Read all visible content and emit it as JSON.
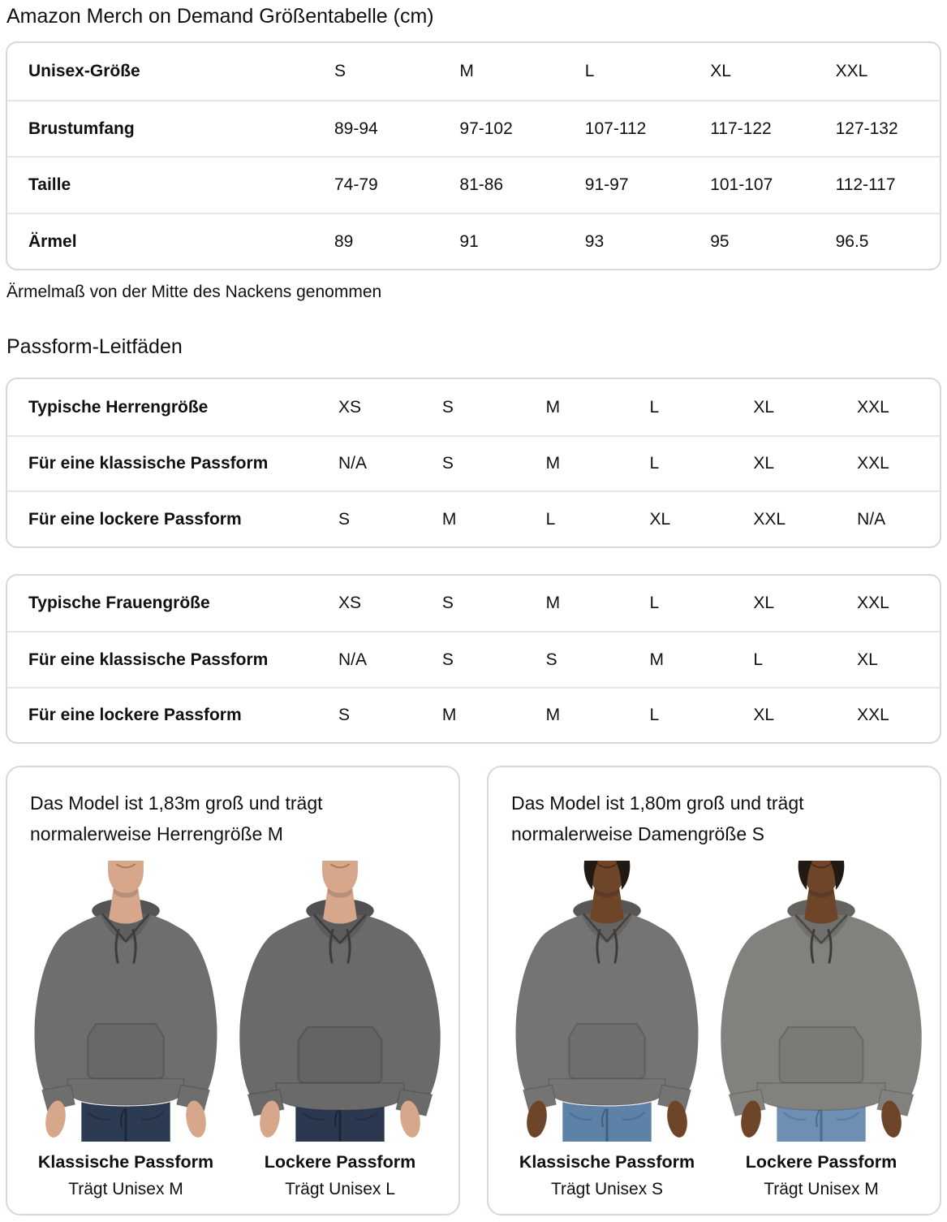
{
  "page": {
    "title": "Amazon Merch on Demand Größentabelle (cm)",
    "sleeve_note": "Ärmelmaß von der Mitte des Nackens genommen",
    "fit_guides_heading": "Passform-Leitfäden"
  },
  "size_table": {
    "rows": [
      {
        "label": "Unisex-Größe",
        "values": [
          "S",
          "M",
          "L",
          "XL",
          "XXL"
        ]
      },
      {
        "label": "Brustumfang",
        "values": [
          "89-94",
          "97-102",
          "107-112",
          "117-122",
          "127-132"
        ]
      },
      {
        "label": "Taille",
        "values": [
          "74-79",
          "81-86",
          "91-97",
          "101-107",
          "112-117"
        ]
      },
      {
        "label": "Ärmel",
        "values": [
          "89",
          "91",
          "93",
          "95",
          "96.5"
        ]
      }
    ]
  },
  "fit_tables": [
    {
      "name": "men",
      "rows": [
        {
          "label": "Typische Herrengröße",
          "values": [
            "XS",
            "S",
            "M",
            "L",
            "XL",
            "XXL"
          ]
        },
        {
          "label": "Für eine klassische Passform",
          "values": [
            "N/A",
            "S",
            "M",
            "L",
            "XL",
            "XXL"
          ]
        },
        {
          "label": "Für eine lockere Passform",
          "values": [
            "S",
            "M",
            "L",
            "XL",
            "XXL",
            "N/A"
          ]
        }
      ]
    },
    {
      "name": "women",
      "rows": [
        {
          "label": "Typische Frauengröße",
          "values": [
            "XS",
            "S",
            "M",
            "L",
            "XL",
            "XXL"
          ]
        },
        {
          "label": "Für eine klassische Passform",
          "values": [
            "N/A",
            "S",
            "S",
            "M",
            "L",
            "XL"
          ]
        },
        {
          "label": "Für eine lockere Passform",
          "values": [
            "S",
            "M",
            "M",
            "L",
            "XL",
            "XXL"
          ]
        }
      ]
    }
  ],
  "model_cards": [
    {
      "description": "Das Model ist 1,83m groß und trägt normalerweise Herrengröße M",
      "figures": [
        {
          "fit_label": "Klassische Passform",
          "size_label": "Trägt Unisex M",
          "photo": {
            "model": "male",
            "fit": "classic",
            "hoodie": "#6E6E6E",
            "hoodie_shadow": "#545454",
            "skin": "#D7A78C",
            "skin_shadow": "#B07B60",
            "jeans": "#2C3A52",
            "jeans_shadow": "#1B2736"
          }
        },
        {
          "fit_label": "Lockere Passform",
          "size_label": "Trägt Unisex L",
          "photo": {
            "model": "male",
            "fit": "loose",
            "hoodie": "#6A6A6A",
            "hoodie_shadow": "#505050",
            "skin": "#D7A78C",
            "skin_shadow": "#B07B60",
            "jeans": "#2B3850",
            "jeans_shadow": "#1A2634"
          }
        }
      ]
    },
    {
      "description": "Das Model ist 1,80m groß und trägt normalerweise Damengröße S",
      "figures": [
        {
          "fit_label": "Klassische Passform",
          "size_label": "Trägt Unisex S",
          "photo": {
            "model": "female",
            "fit": "classic",
            "hoodie": "#767472",
            "hoodie_shadow": "#595755",
            "skin": "#6F4529",
            "skin_shadow": "#4C2D18",
            "jeans": "#5E81A8",
            "jeans_shadow": "#41607F"
          }
        },
        {
          "fit_label": "Lockere Passform",
          "size_label": "Trägt Unisex M",
          "photo": {
            "model": "female",
            "fit": "loose",
            "hoodie": "#83817D",
            "hoodie_shadow": "#656360",
            "skin": "#6F4529",
            "skin_shadow": "#4C2D18",
            "jeans": "#6E8FB4",
            "jeans_shadow": "#4E6C8C"
          }
        }
      ]
    }
  ],
  "colors": {
    "text": "#0F1111",
    "table_border": "#D5D9D9",
    "row_divider": "#E7E7E7",
    "background": "#FFFFFF"
  }
}
